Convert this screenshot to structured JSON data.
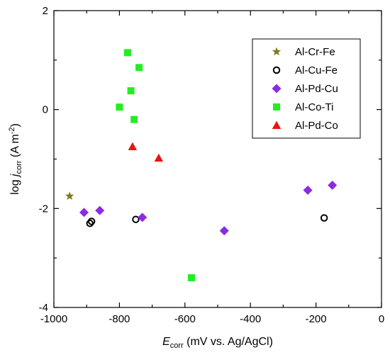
{
  "chart_data": {
    "type": "scatter",
    "xlabel": {
      "main": "E",
      "sub": "corr",
      "rest": " (mV vs. Ag/AgCl)"
    },
    "ylabel": {
      "pre": "log ",
      "main": "j",
      "sub": "corr",
      "rest": " (A m",
      "sup": "-2",
      "end": ")"
    },
    "xlim": [
      -1000,
      0
    ],
    "ylim": [
      -4,
      2
    ],
    "x_ticks": [
      -1000,
      -800,
      -600,
      -400,
      -200,
      0
    ],
    "y_ticks": [
      -4,
      -2,
      0,
      2
    ],
    "x_tick_labels": [
      "-1000",
      "-800",
      "-600",
      "-400",
      "-200",
      "0"
    ],
    "y_tick_labels": [
      "-4",
      "-2",
      "0",
      "2"
    ],
    "grid": false,
    "legend_position": "top-right",
    "series": [
      {
        "name": "Al-Cr-Fe",
        "marker": "star",
        "color": "#7f7a1e",
        "points": [
          [
            -952,
            -1.75
          ]
        ]
      },
      {
        "name": "Al-Cu-Fe",
        "marker": "open-circle",
        "color": "#000000",
        "points": [
          [
            -890,
            -2.3
          ],
          [
            -885,
            -2.26
          ],
          [
            -750,
            -2.22
          ],
          [
            -175,
            -2.19
          ]
        ]
      },
      {
        "name": "Al-Pd-Cu",
        "marker": "diamond",
        "color": "#8b2be2",
        "points": [
          [
            -908,
            -2.08
          ],
          [
            -860,
            -2.04
          ],
          [
            -730,
            -2.18
          ],
          [
            -480,
            -2.45
          ],
          [
            -225,
            -1.63
          ],
          [
            -150,
            -1.53
          ]
        ]
      },
      {
        "name": "Al-Co-Ti",
        "marker": "square",
        "color": "#22ee22",
        "points": [
          [
            -775,
            1.15
          ],
          [
            -740,
            0.85
          ],
          [
            -765,
            0.38
          ],
          [
            -800,
            0.05
          ],
          [
            -755,
            -0.2
          ],
          [
            -580,
            -3.4
          ]
        ]
      },
      {
        "name": "Al-Pd-Co",
        "marker": "triangle",
        "color": "#ee1111",
        "points": [
          [
            -760,
            -0.75
          ],
          [
            -680,
            -0.98
          ]
        ]
      }
    ]
  }
}
